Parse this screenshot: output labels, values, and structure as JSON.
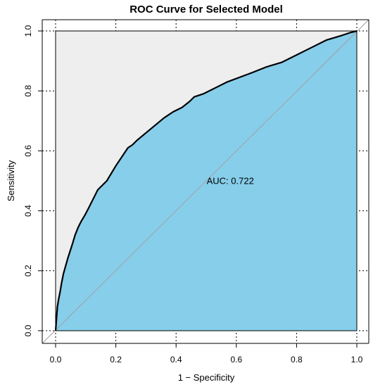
{
  "chart_data": {
    "type": "area",
    "title": "ROC Curve for Selected Model",
    "xlabel": "1 − Specificity",
    "ylabel": "Sensitivity",
    "xlim": [
      0,
      1
    ],
    "ylim": [
      0,
      1
    ],
    "x_ticks": [
      0.0,
      0.2,
      0.4,
      0.6,
      0.8,
      1.0
    ],
    "y_ticks": [
      0.0,
      0.2,
      0.4,
      0.6,
      0.8,
      1.0
    ],
    "x_tick_labels": [
      "0.0",
      "0.2",
      "0.4",
      "0.6",
      "0.8",
      "1.0"
    ],
    "y_tick_labels": [
      "0.0",
      "0.2",
      "0.4",
      "0.6",
      "0.8",
      "1.0"
    ],
    "grid": true,
    "annotation": "AUC: 0.722",
    "annotation_position": [
      0.58,
      0.49
    ],
    "colors": {
      "area_fill": "#87CEEB",
      "background_fill": "#EEEEEE",
      "curve": "#000000",
      "diagonal": "#A0A0A0",
      "grid": "#000000"
    },
    "series": [
      {
        "x": [
          0.0,
          0.003,
          0.006,
          0.01,
          0.015,
          0.02,
          0.026,
          0.033,
          0.04,
          0.048,
          0.056,
          0.065,
          0.075,
          0.085,
          0.097,
          0.11,
          0.125,
          0.14,
          0.155,
          0.17,
          0.185,
          0.2,
          0.22,
          0.24,
          0.255,
          0.27,
          0.3,
          0.33,
          0.36,
          0.39,
          0.42,
          0.445,
          0.46,
          0.49,
          0.53,
          0.57,
          0.61,
          0.65,
          0.7,
          0.75,
          0.8,
          0.83,
          0.86,
          0.9,
          0.95,
          0.98,
          1.0
        ],
        "y": [
          0.0,
          0.04,
          0.08,
          0.105,
          0.13,
          0.16,
          0.19,
          0.215,
          0.24,
          0.265,
          0.29,
          0.32,
          0.345,
          0.365,
          0.385,
          0.41,
          0.44,
          0.47,
          0.485,
          0.5,
          0.525,
          0.55,
          0.58,
          0.61,
          0.62,
          0.635,
          0.66,
          0.685,
          0.71,
          0.73,
          0.745,
          0.765,
          0.78,
          0.79,
          0.81,
          0.83,
          0.845,
          0.86,
          0.88,
          0.895,
          0.92,
          0.935,
          0.95,
          0.97,
          0.985,
          0.995,
          1.0
        ]
      }
    ]
  }
}
